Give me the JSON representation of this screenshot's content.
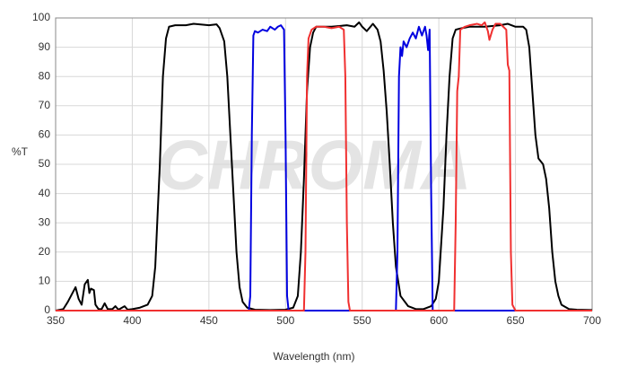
{
  "chart_data": {
    "type": "line",
    "xlabel": "Wavelength (nm)",
    "ylabel": "%T",
    "watermark": "CHROMA",
    "xlim": [
      350,
      700
    ],
    "ylim": [
      0,
      100
    ],
    "xticks": [
      350,
      400,
      450,
      500,
      550,
      600,
      650,
      700
    ],
    "yticks": [
      0,
      10,
      20,
      30,
      40,
      50,
      60,
      70,
      80,
      90,
      100
    ],
    "grid": true,
    "series": [
      {
        "color": "#000000",
        "x": [
          350,
          355,
          358,
          361,
          363,
          365,
          367,
          369,
          371,
          372,
          373,
          375,
          376,
          378,
          380,
          382,
          384,
          387,
          389,
          391,
          395,
          397,
          400,
          405,
          410,
          413,
          415,
          418,
          420,
          422,
          424,
          428,
          435,
          440,
          450,
          455,
          457,
          460,
          462,
          464,
          466,
          468,
          470,
          472,
          475,
          480,
          490,
          500,
          505,
          508,
          510,
          512,
          514,
          516,
          518,
          520,
          530,
          540,
          545,
          548,
          550,
          553,
          557,
          560,
          562,
          564,
          566,
          568,
          570,
          572,
          575,
          580,
          585,
          590,
          595,
          598,
          600,
          603,
          605,
          607,
          609,
          611,
          615,
          620,
          630,
          640,
          645,
          650,
          655,
          657,
          659,
          661,
          663,
          665,
          668,
          670,
          672,
          674,
          676,
          678,
          680,
          685,
          690,
          700
        ],
        "values": [
          0,
          0.5,
          3,
          6,
          8,
          4,
          2,
          9,
          10.5,
          6,
          7.5,
          7,
          2,
          0.5,
          0.5,
          2.5,
          0.5,
          0.5,
          1.5,
          0.3,
          1.5,
          0.3,
          0.5,
          1,
          2,
          5,
          15,
          50,
          80,
          93,
          97,
          97.5,
          97.5,
          98,
          97.5,
          97.8,
          96.5,
          92,
          80,
          60,
          40,
          20,
          8,
          3,
          1,
          0.3,
          0.2,
          0.3,
          1,
          5,
          20,
          45,
          75,
          90,
          95,
          97,
          97,
          97.5,
          97,
          98.5,
          97,
          95.5,
          98,
          96,
          92,
          82,
          68,
          50,
          30,
          15,
          5,
          1.5,
          0.5,
          0.5,
          1.5,
          4,
          10,
          35,
          60,
          80,
          93,
          96,
          96.5,
          97,
          97,
          97.5,
          98,
          97,
          97,
          96,
          90,
          75,
          60,
          52,
          50,
          45,
          35,
          20,
          10,
          5,
          2,
          0.5,
          0.3,
          0.2
        ]
      },
      {
        "color": "#0000e0",
        "x": [
          350,
          476,
          477,
          478,
          479,
          480,
          482,
          485,
          488,
          490,
          493,
          495,
          497,
          499,
          500,
          501,
          502,
          572,
          573,
          574,
          575,
          576,
          577,
          579,
          581,
          583,
          585,
          587,
          589,
          591,
          592,
          593,
          594,
          595,
          596,
          700
        ],
        "values": [
          0,
          0,
          5,
          60,
          94,
          95.5,
          95,
          96,
          95.5,
          97,
          96,
          97,
          97.5,
          96,
          60,
          5,
          0,
          0,
          20,
          80,
          90,
          87,
          92,
          90,
          93,
          95,
          93,
          97,
          94,
          97,
          94,
          89,
          96,
          40,
          0,
          0
        ]
      },
      {
        "color": "#f03030",
        "x": [
          350,
          512,
          513,
          514,
          515,
          517,
          520,
          525,
          530,
          535,
          538,
          539,
          540,
          541,
          542,
          610,
          611,
          612,
          613,
          614,
          617,
          620,
          625,
          628,
          630,
          632,
          633,
          635,
          637,
          640,
          642,
          644,
          645,
          646,
          647,
          648,
          650,
          700
        ],
        "values": [
          0,
          0,
          20,
          80,
          93,
          96,
          97,
          97,
          96.5,
          97,
          96,
          80,
          30,
          3,
          0,
          0,
          30,
          75,
          80,
          96,
          97,
          97.5,
          98,
          97.5,
          98.5,
          95.5,
          92.5,
          96,
          98,
          98,
          97,
          96,
          84,
          82,
          20,
          2,
          0,
          0
        ]
      }
    ]
  }
}
